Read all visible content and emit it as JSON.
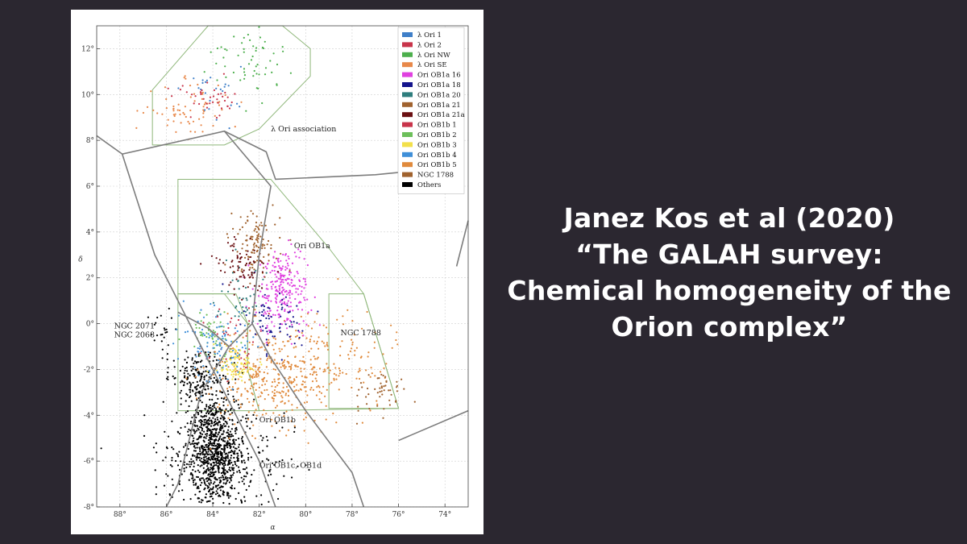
{
  "slide": {
    "title_lines": [
      "Janez Kos et al (2020)",
      "“The GALAH survey:",
      "Chemical homogeneity of the",
      "Orion complex”"
    ]
  },
  "chart_data": {
    "type": "scatter",
    "xlabel": "α",
    "ylabel": "δ",
    "xlim": [
      89,
      73
    ],
    "ylim": [
      -8,
      13
    ],
    "x_ticks": [
      "88°",
      "86°",
      "84°",
      "82°",
      "80°",
      "78°",
      "76°",
      "74°"
    ],
    "y_ticks": [
      "-8°",
      "-6°",
      "-4°",
      "-2°",
      "0°",
      "2°",
      "4°",
      "6°",
      "8°",
      "10°",
      "12°"
    ],
    "grid": true,
    "legend_position": "top-right",
    "series": [
      {
        "name": "λ Ori 1",
        "color": "#3f7fc8",
        "clusters": [
          {
            "ra": 84.0,
            "dec": 10.1,
            "sra": 0.6,
            "sdec": 0.6,
            "n": 25
          }
        ]
      },
      {
        "name": "λ Ori 2",
        "color": "#c8344a",
        "clusters": [
          {
            "ra": 84.2,
            "dec": 9.8,
            "sra": 0.6,
            "sdec": 0.4,
            "n": 40
          }
        ]
      },
      {
        "name": "λ Ori NW",
        "color": "#4caf4c",
        "clusters": [
          {
            "ra": 82.5,
            "dec": 11.6,
            "sra": 0.8,
            "sdec": 0.8,
            "n": 60
          }
        ]
      },
      {
        "name": "λ Ori SE",
        "color": "#e8884a",
        "clusters": [
          {
            "ra": 85.0,
            "dec": 9.3,
            "sra": 1.0,
            "sdec": 0.6,
            "n": 70
          }
        ]
      },
      {
        "name": "Ori OB1a 16",
        "color": "#e040e0",
        "clusters": [
          {
            "ra": 81.0,
            "dec": 1.5,
            "sra": 0.6,
            "sdec": 0.9,
            "n": 250
          }
        ]
      },
      {
        "name": "Ori OB1a 18",
        "color": "#14148c",
        "clusters": [
          {
            "ra": 81.4,
            "dec": 0.2,
            "sra": 0.6,
            "sdec": 0.7,
            "n": 70
          }
        ]
      },
      {
        "name": "Ori OB1a 20",
        "color": "#2e7d7d",
        "clusters": [
          {
            "ra": 82.6,
            "dec": 1.0,
            "sra": 0.6,
            "sdec": 0.8,
            "n": 40
          }
        ]
      },
      {
        "name": "Ori OB1a 21",
        "color": "#a0622e",
        "clusters": [
          {
            "ra": 82.2,
            "dec": 3.5,
            "sra": 0.5,
            "sdec": 0.7,
            "n": 110
          }
        ]
      },
      {
        "name": "Ori OB1a 21a",
        "color": "#6a0f12",
        "clusters": [
          {
            "ra": 82.7,
            "dec": 2.5,
            "sra": 0.6,
            "sdec": 0.6,
            "n": 80
          }
        ]
      },
      {
        "name": "Ori OB1b 1",
        "color": "#c8344a",
        "clusters": [
          {
            "ra": 83.0,
            "dec": -0.8,
            "sra": 0.7,
            "sdec": 0.7,
            "n": 40
          }
        ]
      },
      {
        "name": "Ori OB1b 2",
        "color": "#6cbf5a",
        "clusters": [
          {
            "ra": 84.1,
            "dec": -0.4,
            "sra": 0.6,
            "sdec": 0.5,
            "n": 60
          }
        ]
      },
      {
        "name": "Ori OB1b 3",
        "color": "#f2e04a",
        "clusters": [
          {
            "ra": 83.0,
            "dec": -1.8,
            "sra": 0.5,
            "sdec": 0.4,
            "n": 90
          }
        ]
      },
      {
        "name": "Ori OB1b 4",
        "color": "#3f8fd8",
        "clusters": [
          {
            "ra": 83.8,
            "dec": -1.0,
            "sra": 0.8,
            "sdec": 0.7,
            "n": 100
          }
        ]
      },
      {
        "name": "Ori OB1b 5",
        "color": "#e08a3c",
        "clusters": [
          {
            "ra": 81.4,
            "dec": -2.3,
            "sra": 1.3,
            "sdec": 1.1,
            "n": 380
          },
          {
            "ra": 78.5,
            "dec": -1.5,
            "sra": 1.2,
            "sdec": 1.2,
            "n": 110
          }
        ]
      },
      {
        "name": "NGC 1788",
        "color": "#a0622e",
        "clusters": [
          {
            "ra": 76.8,
            "dec": -3.0,
            "sra": 0.6,
            "sdec": 0.4,
            "n": 50
          }
        ]
      },
      {
        "name": "Others",
        "color": "#000000",
        "clusters": [
          {
            "ra": 83.9,
            "dec": -5.5,
            "sra": 0.55,
            "sdec": 1.2,
            "n": 800
          },
          {
            "ra": 84.6,
            "dec": -2.3,
            "sra": 0.6,
            "sdec": 0.6,
            "n": 180
          },
          {
            "ra": 84.0,
            "dec": -6.0,
            "sra": 1.5,
            "sdec": 1.3,
            "n": 320
          },
          {
            "ra": 86.2,
            "dec": -0.4,
            "sra": 0.3,
            "sdec": 0.5,
            "n": 25
          }
        ]
      }
    ],
    "regions": [
      {
        "name": "λ Ori region",
        "points": [
          [
            86.6,
            8.8
          ],
          [
            86.6,
            10.2
          ],
          [
            84.2,
            13.0
          ],
          [
            81.0,
            13.0
          ],
          [
            79.8,
            12.0
          ],
          [
            79.8,
            10.8
          ],
          [
            82.0,
            8.5
          ],
          [
            83.5,
            7.8
          ],
          [
            86.6,
            7.8
          ]
        ]
      },
      {
        "name": "Ori OB1a region",
        "points": [
          [
            85.5,
            6.3
          ],
          [
            81.5,
            6.3
          ],
          [
            79.0,
            3.3
          ],
          [
            77.5,
            1.3
          ],
          [
            76.0,
            -3.7
          ],
          [
            82.0,
            -3.8
          ],
          [
            82.5,
            -2.0
          ],
          [
            82.5,
            0.0
          ],
          [
            83.0,
            1.3
          ],
          [
            85.5,
            1.3
          ]
        ]
      },
      {
        "name": "Ori OB1b region",
        "points": [
          [
            85.5,
            1.3
          ],
          [
            83.5,
            1.3
          ],
          [
            82.5,
            0.0
          ],
          [
            82.5,
            -2.0
          ],
          [
            82.0,
            -3.8
          ],
          [
            85.5,
            -3.8
          ]
        ]
      },
      {
        "name": "NGC 1788 region",
        "points": [
          [
            79.0,
            1.3
          ],
          [
            77.5,
            1.3
          ],
          [
            76.0,
            -3.7
          ],
          [
            79.0,
            -3.7
          ]
        ]
      }
    ],
    "boundaries": [
      [
        [
          89.0,
          8.2
        ],
        [
          87.9,
          7.4
        ],
        [
          83.5,
          8.4
        ],
        [
          81.7,
          7.5
        ],
        [
          81.3,
          6.3
        ],
        [
          77.0,
          6.5
        ],
        [
          74.0,
          6.8
        ]
      ],
      [
        [
          87.9,
          7.4
        ],
        [
          86.5,
          3.0
        ],
        [
          84.0,
          -2.0
        ],
        [
          83.0,
          -4.0
        ],
        [
          82.0,
          -6.0
        ],
        [
          81.3,
          -8.0
        ]
      ],
      [
        [
          83.5,
          8.4
        ],
        [
          81.5,
          6.0
        ],
        [
          82.0,
          3.0
        ],
        [
          82.3,
          0.0
        ],
        [
          83.3,
          -1.0
        ],
        [
          84.2,
          -0.2
        ],
        [
          85.5,
          0.5
        ]
      ],
      [
        [
          82.3,
          0.0
        ],
        [
          81.5,
          -1.5
        ],
        [
          80.0,
          -3.8
        ],
        [
          78.0,
          -6.5
        ],
        [
          77.5,
          -8.0
        ]
      ],
      [
        [
          83.3,
          -1.0
        ],
        [
          84.5,
          -3.0
        ],
        [
          85.5,
          -7.0
        ],
        [
          86.0,
          -8.0
        ]
      ],
      [
        [
          76.0,
          -5.1
        ],
        [
          73.0,
          -3.8
        ]
      ],
      [
        [
          73.5,
          2.5
        ],
        [
          73.0,
          4.5
        ]
      ]
    ],
    "annotations": [
      {
        "text": "λ Ori association",
        "ra": 81.5,
        "dec": 8.4,
        "anchor": "start"
      },
      {
        "text": "Ori OB1a",
        "ra": 80.5,
        "dec": 3.3,
        "anchor": "start"
      },
      {
        "text": "NGC 1788",
        "ra": 78.5,
        "dec": -0.5,
        "anchor": "start"
      },
      {
        "text": "NGC 2071",
        "ra": 86.5,
        "dec": -0.2,
        "anchor": "end"
      },
      {
        "text": "NGC 2068",
        "ra": 86.5,
        "dec": -0.6,
        "anchor": "end"
      },
      {
        "text": "Ori OB1b",
        "ra": 82.0,
        "dec": -4.3,
        "anchor": "start"
      },
      {
        "text": "Ori OB1c, OB1d",
        "ra": 82.0,
        "dec": -6.3,
        "anchor": "start"
      }
    ]
  }
}
